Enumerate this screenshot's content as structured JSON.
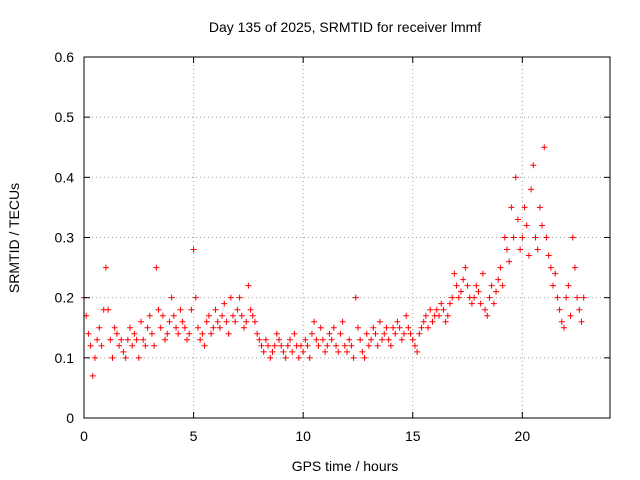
{
  "chart_data": {
    "type": "scatter",
    "title": "Day 135 of 2025, SRMTID for receiver lmmf",
    "xlabel": "GPS time / hours",
    "ylabel": "SRMTID / TECUs",
    "xlim": [
      0,
      24
    ],
    "ylim": [
      0,
      0.6
    ],
    "xticks": [
      0,
      5,
      10,
      15,
      20
    ],
    "xtick_labels": [
      "0",
      "5",
      "10",
      "15",
      "20"
    ],
    "yticks": [
      0,
      0.1,
      0.2,
      0.3,
      0.4,
      0.5,
      0.6
    ],
    "ytick_labels": [
      "0",
      "0.1",
      "0.2",
      "0.3",
      "0.4",
      "0.5",
      "0.6"
    ],
    "grid": true,
    "marker": "+",
    "color": "#ff0000",
    "series": [
      {
        "name": "SRMTID",
        "x": [
          0.0,
          0.1,
          0.2,
          0.3,
          0.4,
          0.5,
          0.6,
          0.7,
          0.8,
          0.9,
          1.0,
          1.1,
          1.2,
          1.3,
          1.4,
          1.5,
          1.6,
          1.7,
          1.8,
          1.9,
          2.0,
          2.1,
          2.2,
          2.3,
          2.4,
          2.5,
          2.6,
          2.7,
          2.8,
          2.9,
          3.0,
          3.1,
          3.2,
          3.3,
          3.4,
          3.5,
          3.6,
          3.7,
          3.8,
          3.9,
          4.0,
          4.1,
          4.2,
          4.3,
          4.4,
          4.5,
          4.6,
          4.7,
          4.8,
          4.9,
          5.0,
          5.1,
          5.2,
          5.3,
          5.4,
          5.5,
          5.6,
          5.7,
          5.8,
          5.9,
          6.0,
          6.1,
          6.2,
          6.3,
          6.4,
          6.5,
          6.6,
          6.7,
          6.8,
          6.9,
          7.0,
          7.1,
          7.2,
          7.3,
          7.4,
          7.5,
          7.6,
          7.7,
          7.8,
          7.9,
          8.0,
          8.1,
          8.2,
          8.3,
          8.4,
          8.5,
          8.6,
          8.7,
          8.8,
          8.9,
          9.0,
          9.1,
          9.2,
          9.3,
          9.4,
          9.5,
          9.6,
          9.7,
          9.8,
          9.9,
          10.0,
          10.1,
          10.2,
          10.3,
          10.4,
          10.5,
          10.6,
          10.7,
          10.8,
          10.9,
          11.0,
          11.1,
          11.2,
          11.3,
          11.4,
          11.5,
          11.6,
          11.7,
          11.8,
          11.9,
          12.0,
          12.1,
          12.2,
          12.3,
          12.4,
          12.5,
          12.6,
          12.7,
          12.8,
          12.9,
          13.0,
          13.1,
          13.2,
          13.3,
          13.4,
          13.5,
          13.6,
          13.7,
          13.8,
          13.9,
          14.0,
          14.1,
          14.2,
          14.3,
          14.4,
          14.5,
          14.6,
          14.7,
          14.8,
          14.9,
          15.0,
          15.1,
          15.2,
          15.3,
          15.4,
          15.5,
          15.6,
          15.7,
          15.8,
          15.9,
          16.0,
          16.1,
          16.2,
          16.3,
          16.4,
          16.5,
          16.6,
          16.7,
          16.8,
          16.9,
          17.0,
          17.1,
          17.2,
          17.3,
          17.4,
          17.5,
          17.6,
          17.7,
          17.8,
          17.9,
          18.0,
          18.1,
          18.2,
          18.3,
          18.4,
          18.5,
          18.6,
          18.7,
          18.8,
          18.9,
          19.0,
          19.1,
          19.2,
          19.3,
          19.4,
          19.5,
          19.6,
          19.7,
          19.8,
          19.9,
          20.0,
          20.1,
          20.2,
          20.3,
          20.4,
          20.5,
          20.6,
          20.7,
          20.8,
          20.9,
          21.0,
          21.1,
          21.2,
          21.3,
          21.4,
          21.5,
          21.6,
          21.7,
          21.8,
          21.9,
          22.0,
          22.1,
          22.2,
          22.3,
          22.4,
          22.5,
          22.6,
          22.7,
          22.8
        ],
        "y": [
          0.2,
          0.17,
          0.14,
          0.12,
          0.07,
          0.1,
          0.13,
          0.15,
          0.12,
          0.18,
          0.25,
          0.18,
          0.13,
          0.1,
          0.15,
          0.14,
          0.12,
          0.13,
          0.11,
          0.1,
          0.13,
          0.15,
          0.12,
          0.14,
          0.13,
          0.1,
          0.16,
          0.13,
          0.12,
          0.15,
          0.17,
          0.14,
          0.12,
          0.25,
          0.18,
          0.15,
          0.17,
          0.13,
          0.14,
          0.16,
          0.2,
          0.17,
          0.15,
          0.14,
          0.18,
          0.16,
          0.15,
          0.13,
          0.14,
          0.18,
          0.28,
          0.2,
          0.15,
          0.13,
          0.14,
          0.12,
          0.16,
          0.17,
          0.14,
          0.15,
          0.18,
          0.16,
          0.15,
          0.17,
          0.19,
          0.16,
          0.14,
          0.2,
          0.17,
          0.16,
          0.18,
          0.2,
          0.17,
          0.15,
          0.16,
          0.22,
          0.18,
          0.17,
          0.16,
          0.14,
          0.13,
          0.12,
          0.11,
          0.13,
          0.12,
          0.1,
          0.11,
          0.12,
          0.14,
          0.13,
          0.12,
          0.11,
          0.1,
          0.12,
          0.13,
          0.11,
          0.14,
          0.12,
          0.1,
          0.12,
          0.11,
          0.13,
          0.12,
          0.1,
          0.14,
          0.16,
          0.13,
          0.12,
          0.15,
          0.13,
          0.11,
          0.12,
          0.14,
          0.13,
          0.15,
          0.12,
          0.11,
          0.14,
          0.16,
          0.12,
          0.11,
          0.13,
          0.12,
          0.1,
          0.2,
          0.15,
          0.13,
          0.11,
          0.1,
          0.14,
          0.12,
          0.13,
          0.15,
          0.14,
          0.12,
          0.16,
          0.13,
          0.14,
          0.15,
          0.13,
          0.12,
          0.15,
          0.14,
          0.16,
          0.15,
          0.13,
          0.14,
          0.17,
          0.15,
          0.14,
          0.13,
          0.12,
          0.11,
          0.14,
          0.15,
          0.16,
          0.17,
          0.15,
          0.18,
          0.16,
          0.17,
          0.18,
          0.17,
          0.19,
          0.18,
          0.16,
          0.17,
          0.19,
          0.2,
          0.24,
          0.22,
          0.2,
          0.21,
          0.23,
          0.25,
          0.22,
          0.2,
          0.19,
          0.2,
          0.22,
          0.21,
          0.19,
          0.24,
          0.18,
          0.17,
          0.2,
          0.22,
          0.19,
          0.21,
          0.23,
          0.25,
          0.22,
          0.3,
          0.28,
          0.26,
          0.35,
          0.3,
          0.4,
          0.33,
          0.28,
          0.3,
          0.35,
          0.32,
          0.27,
          0.38,
          0.42,
          0.3,
          0.28,
          0.35,
          0.32,
          0.45,
          0.3,
          0.27,
          0.25,
          0.22,
          0.24,
          0.2,
          0.18,
          0.16,
          0.15,
          0.2,
          0.22,
          0.17,
          0.3,
          0.25,
          0.2,
          0.18,
          0.16,
          0.2
        ]
      }
    ]
  }
}
